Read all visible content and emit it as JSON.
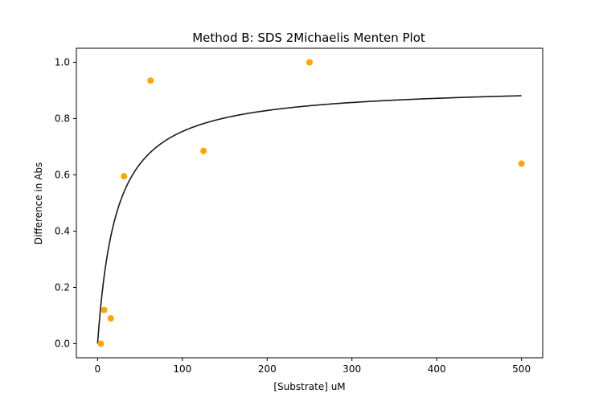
{
  "chart_data": {
    "type": "scatter",
    "title": "Method B: SDS 2Michaelis Menten Plot",
    "xlabel": "[Substrate] uM",
    "ylabel": "Difference in Abs",
    "xlim": [
      -25,
      525
    ],
    "ylim": [
      -0.05,
      1.05
    ],
    "x_ticks": [
      0,
      100,
      200,
      300,
      400,
      500
    ],
    "x_tick_labels": [
      "0",
      "100",
      "200",
      "300",
      "400",
      "500"
    ],
    "y_ticks": [
      0.0,
      0.2,
      0.4,
      0.6,
      0.8,
      1.0
    ],
    "y_tick_labels": [
      "0.0",
      "0.2",
      "0.4",
      "0.6",
      "0.8",
      "1.0"
    ],
    "grid": false,
    "legend": "none",
    "series": [
      {
        "kind": "scatter",
        "color": "#ffa500",
        "points": [
          {
            "x": 3.9,
            "y": 0.0
          },
          {
            "x": 7.8,
            "y": 0.12
          },
          {
            "x": 15.6,
            "y": 0.09
          },
          {
            "x": 31.25,
            "y": 0.595
          },
          {
            "x": 62.5,
            "y": 0.935
          },
          {
            "x": 125,
            "y": 0.685
          },
          {
            "x": 250,
            "y": 1.0
          },
          {
            "x": 500,
            "y": 0.64
          }
        ]
      },
      {
        "kind": "fit-curve",
        "model": "michaelis-menten",
        "color": "#1a1a1a",
        "vmax": 0.92,
        "km": 22,
        "x_range": [
          0,
          500
        ]
      }
    ]
  }
}
